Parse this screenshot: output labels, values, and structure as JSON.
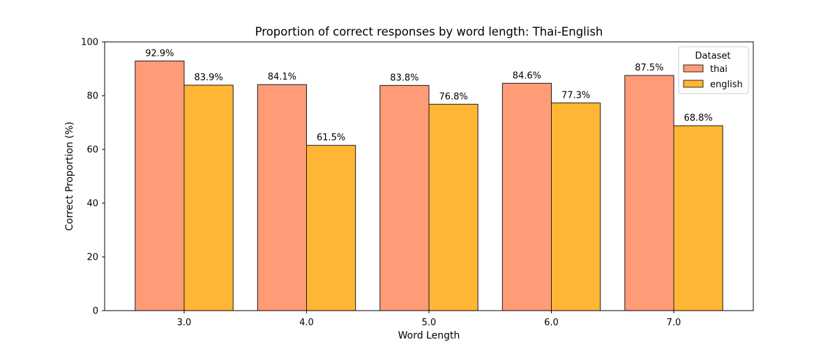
{
  "chart_data": {
    "type": "bar",
    "title": "Proportion of correct responses by word length: Thai-English",
    "xlabel": "Word Length",
    "ylabel": "Correct Proportion (%)",
    "categories": [
      "3.0",
      "4.0",
      "5.0",
      "6.0",
      "7.0"
    ],
    "ylim": [
      0,
      100
    ],
    "yticks": [
      0,
      20,
      40,
      60,
      80,
      100
    ],
    "grid": false,
    "legend": {
      "title": "Dataset",
      "placement": "top-right"
    },
    "series": [
      {
        "name": "thai",
        "color": "#FF9B76",
        "values": [
          92.9,
          84.1,
          83.8,
          84.6,
          87.5
        ],
        "labels": [
          "92.9%",
          "84.1%",
          "83.8%",
          "84.6%",
          "87.5%"
        ]
      },
      {
        "name": "english",
        "color": "#FFB634",
        "values": [
          83.9,
          61.5,
          76.8,
          77.3,
          68.8
        ],
        "labels": [
          "83.9%",
          "61.5%",
          "76.8%",
          "77.3%",
          "68.8%"
        ]
      }
    ]
  }
}
